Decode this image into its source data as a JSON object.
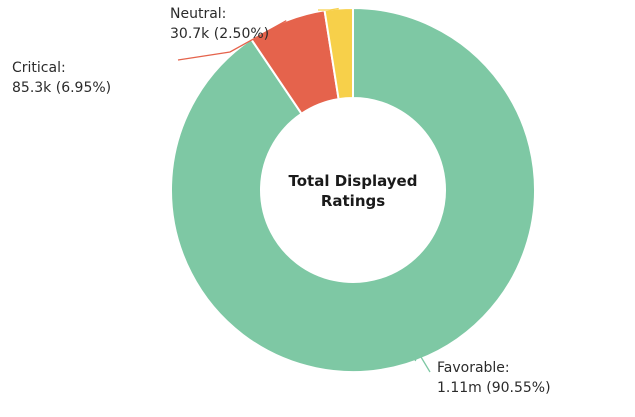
{
  "chart_data": {
    "type": "pie",
    "donut": true,
    "center_label": [
      "Total Displayed",
      "Ratings"
    ],
    "slices": [
      {
        "name": "Favorable",
        "value": 1110000,
        "percent": 90.55,
        "color": "#7ec8a4",
        "label_line1": "Favorable:",
        "label_line2": "1.11m (90.55%)"
      },
      {
        "name": "Critical",
        "value": 85300,
        "percent": 6.95,
        "color": "#e5634c",
        "label_line1": "Critical:",
        "label_line2": "85.3k (6.95%)"
      },
      {
        "name": "Neutral",
        "value": 30700,
        "percent": 2.5,
        "color": "#f7d04a",
        "label_line1": "Neutral:",
        "label_line2": "30.7k (2.50%)"
      }
    ],
    "start_angle_deg": 0,
    "direction": "clockwise"
  }
}
